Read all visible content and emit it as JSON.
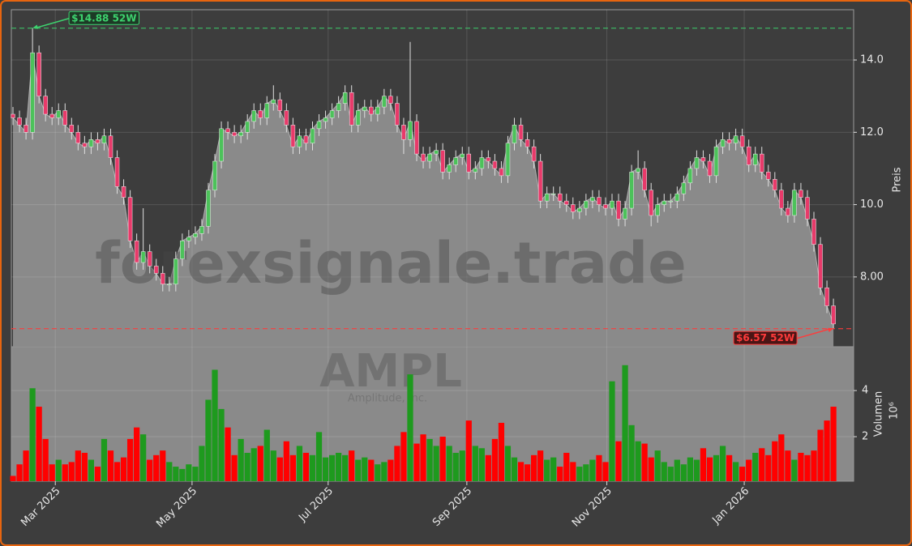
{
  "chart_data": {
    "type": "candlestick",
    "open": [
      12.5,
      12.4,
      12.2,
      12.0,
      14.2,
      13.0,
      12.5,
      12.4,
      12.6,
      12.2,
      12.0,
      11.7,
      11.6,
      11.8,
      11.7,
      11.9,
      11.3,
      10.5,
      10.2,
      9.0,
      8.4,
      8.7,
      8.3,
      8.1,
      7.8,
      7.8,
      8.5,
      9.0,
      9.1,
      9.2,
      9.4,
      10.4,
      11.2,
      12.1,
      12.0,
      11.9,
      12.0,
      12.3,
      12.6,
      12.4,
      12.8,
      12.9,
      12.6,
      12.2,
      11.6,
      11.9,
      11.7,
      12.1,
      12.3,
      12.4,
      12.6,
      12.8,
      13.1,
      12.2,
      12.6,
      12.7,
      12.5,
      12.7,
      13.0,
      12.8,
      12.2,
      11.8,
      12.3,
      11.4,
      11.2,
      11.4,
      11.5,
      10.9,
      11.1,
      11.3,
      11.4,
      10.9,
      11.0,
      11.3,
      11.2,
      11.0,
      10.8,
      11.7,
      12.2,
      11.8,
      11.6,
      11.2,
      10.1,
      10.3,
      10.3,
      10.1,
      10.0,
      9.8,
      9.9,
      10.1,
      10.2,
      10.0,
      9.9,
      10.1,
      9.6,
      9.9,
      10.9,
      11.0,
      10.4,
      9.7,
      10.0,
      10.1,
      10.1,
      10.3,
      10.6,
      11.0,
      11.3,
      11.2,
      10.8,
      11.6,
      11.8,
      11.7,
      11.9,
      11.6,
      11.1,
      11.4,
      10.9,
      10.7,
      10.4,
      9.9,
      9.7,
      10.4,
      10.2,
      9.6,
      8.9,
      7.7,
      7.2
    ],
    "high": [
      12.7,
      12.6,
      12.4,
      14.88,
      14.4,
      13.2,
      12.7,
      12.8,
      12.8,
      12.4,
      12.2,
      11.9,
      12.0,
      12.0,
      12.1,
      12.1,
      11.5,
      10.7,
      10.4,
      9.2,
      9.9,
      8.9,
      8.5,
      8.3,
      8.0,
      8.7,
      9.2,
      9.3,
      9.4,
      9.6,
      10.6,
      11.4,
      12.3,
      12.3,
      12.2,
      12.2,
      12.5,
      12.8,
      12.8,
      13.0,
      13.3,
      13.1,
      12.8,
      12.4,
      12.1,
      12.1,
      12.3,
      12.5,
      12.6,
      12.8,
      13.0,
      13.3,
      13.3,
      12.8,
      12.9,
      12.9,
      12.9,
      13.2,
      13.2,
      13.0,
      12.4,
      14.5,
      12.5,
      11.6,
      11.6,
      11.7,
      11.7,
      11.3,
      11.5,
      11.6,
      11.6,
      11.2,
      11.5,
      11.5,
      11.4,
      11.2,
      11.9,
      12.4,
      12.4,
      12.0,
      11.8,
      11.4,
      10.5,
      10.5,
      10.5,
      10.3,
      10.2,
      10.1,
      10.3,
      10.4,
      10.4,
      10.2,
      10.3,
      10.3,
      10.1,
      11.1,
      11.5,
      11.2,
      10.6,
      10.2,
      10.3,
      10.3,
      10.5,
      10.8,
      11.2,
      11.5,
      11.5,
      11.4,
      11.8,
      12.0,
      12.0,
      12.1,
      12.1,
      11.8,
      11.6,
      11.6,
      11.1,
      10.9,
      10.6,
      10.1,
      10.6,
      10.6,
      10.4,
      9.8,
      9.1,
      7.9,
      7.4
    ],
    "low": [
      12.2,
      12.0,
      11.8,
      11.8,
      12.8,
      12.3,
      12.2,
      12.2,
      12.0,
      11.8,
      11.5,
      11.4,
      11.4,
      11.5,
      11.5,
      11.1,
      10.3,
      10.0,
      8.8,
      8.2,
      8.2,
      8.1,
      7.9,
      7.6,
      7.6,
      7.6,
      8.3,
      8.8,
      8.9,
      9.0,
      9.2,
      10.2,
      11.0,
      11.8,
      11.7,
      11.7,
      11.8,
      12.1,
      12.2,
      12.2,
      12.6,
      12.4,
      12.0,
      11.4,
      11.4,
      11.5,
      11.5,
      11.9,
      12.1,
      12.2,
      12.4,
      12.6,
      12.0,
      12.0,
      12.4,
      12.3,
      12.3,
      12.5,
      12.6,
      12.0,
      11.4,
      11.6,
      11.2,
      11.0,
      11.0,
      11.2,
      10.7,
      10.7,
      10.9,
      11.1,
      10.7,
      10.7,
      10.8,
      11.0,
      10.8,
      10.6,
      10.6,
      11.5,
      11.6,
      11.4,
      11.0,
      9.9,
      9.9,
      10.1,
      9.9,
      9.8,
      9.6,
      9.6,
      9.7,
      9.9,
      9.8,
      9.7,
      9.7,
      9.4,
      9.4,
      9.7,
      10.7,
      10.2,
      9.4,
      9.5,
      9.8,
      9.9,
      9.9,
      10.1,
      10.4,
      10.8,
      11.0,
      10.6,
      10.6,
      11.4,
      11.5,
      11.5,
      11.4,
      10.9,
      10.9,
      10.7,
      10.5,
      10.2,
      9.7,
      9.5,
      9.5,
      10.0,
      9.4,
      8.7,
      7.5,
      7.0,
      6.57
    ],
    "close": [
      12.4,
      12.2,
      12.0,
      14.2,
      13.0,
      12.5,
      12.4,
      12.6,
      12.2,
      12.0,
      11.7,
      11.6,
      11.8,
      11.7,
      11.9,
      11.3,
      10.5,
      10.2,
      9.0,
      8.4,
      8.7,
      8.3,
      8.1,
      7.8,
      7.8,
      8.5,
      9.0,
      9.1,
      9.2,
      9.4,
      10.4,
      11.2,
      12.1,
      12.0,
      11.9,
      12.0,
      12.3,
      12.6,
      12.4,
      12.8,
      12.9,
      12.6,
      12.2,
      11.6,
      11.9,
      11.7,
      12.1,
      12.3,
      12.4,
      12.6,
      12.8,
      13.1,
      12.2,
      12.6,
      12.7,
      12.5,
      12.7,
      13.0,
      12.8,
      12.2,
      11.8,
      12.3,
      11.4,
      11.2,
      11.4,
      11.5,
      10.9,
      11.1,
      11.3,
      11.4,
      10.9,
      11.0,
      11.3,
      11.2,
      11.0,
      10.8,
      11.7,
      12.2,
      11.8,
      11.6,
      11.2,
      10.1,
      10.3,
      10.3,
      10.1,
      10.0,
      9.8,
      9.9,
      10.1,
      10.2,
      10.0,
      9.9,
      10.1,
      9.6,
      9.9,
      10.9,
      11.0,
      10.4,
      9.7,
      10.0,
      10.1,
      10.1,
      10.3,
      10.6,
      11.0,
      11.3,
      11.2,
      10.8,
      11.6,
      11.8,
      11.7,
      11.9,
      11.6,
      11.1,
      11.4,
      10.9,
      10.7,
      10.4,
      9.9,
      9.7,
      10.4,
      10.2,
      9.6,
      8.9,
      7.7,
      7.2,
      6.7
    ],
    "volume": [
      0.3,
      0.8,
      1.4,
      4.1,
      3.3,
      1.9,
      0.8,
      1.0,
      0.8,
      0.9,
      1.4,
      1.3,
      1.0,
      0.7,
      1.9,
      1.4,
      0.9,
      1.1,
      1.9,
      2.4,
      2.1,
      1.0,
      1.2,
      1.4,
      0.9,
      0.7,
      0.6,
      0.8,
      0.7,
      1.6,
      3.6,
      4.9,
      3.2,
      2.4,
      1.2,
      1.9,
      1.3,
      1.5,
      1.6,
      2.3,
      1.4,
      1.1,
      1.8,
      1.2,
      1.6,
      1.3,
      1.2,
      2.2,
      1.1,
      1.2,
      1.3,
      1.2,
      1.4,
      1.0,
      1.1,
      1.0,
      0.8,
      0.9,
      1.0,
      1.6,
      2.2,
      4.7,
      1.7,
      2.1,
      1.9,
      1.6,
      2.0,
      1.6,
      1.3,
      1.4,
      2.7,
      1.6,
      1.5,
      1.2,
      1.9,
      2.6,
      1.6,
      1.1,
      0.9,
      0.8,
      1.2,
      1.4,
      1.0,
      1.1,
      0.7,
      1.3,
      0.9,
      0.7,
      0.8,
      1.0,
      1.2,
      0.9,
      4.4,
      1.8,
      5.1,
      2.5,
      1.8,
      1.7,
      1.1,
      1.4,
      0.9,
      0.7,
      1.0,
      0.8,
      1.1,
      1.0,
      1.5,
      1.1,
      1.2,
      1.6,
      1.2,
      0.9,
      0.7,
      1.0,
      1.3,
      1.5,
      1.2,
      1.8,
      2.1,
      1.4,
      1.0,
      1.3,
      1.2,
      1.4,
      2.3,
      2.7,
      3.3
    ],
    "up_color": "#4cc25a",
    "down_color": "#e83a6a",
    "volume_up_color": "#1e9a1e",
    "volume_down_color": "#ff0000",
    "area_color": "#8a8a8a",
    "xlim": [
      -0.25,
      129.1
    ],
    "xticks": [
      {
        "value": 6.5,
        "label": "Mar 2025"
      },
      {
        "value": 27.5,
        "label": "May 2025"
      },
      {
        "value": 48.4,
        "label": "Jul 2025"
      },
      {
        "value": 69.7,
        "label": "Sep 2025"
      },
      {
        "value": 91.2,
        "label": "Nov 2025"
      },
      {
        "value": 112.3,
        "label": "Jan 2026"
      }
    ],
    "ylim": [
      6.07,
      15.39
    ],
    "yticks": [
      {
        "value": 8,
        "label": "8.00"
      },
      {
        "value": 10,
        "label": "10.0"
      },
      {
        "value": 12,
        "label": "12.0"
      },
      {
        "value": 14,
        "label": "14.0"
      }
    ],
    "ylabel": "Preis",
    "volume_ylim": [
      0.07,
      5.9
    ],
    "volume_yticks": [
      2,
      4
    ],
    "volume_ylabel": "Volumen",
    "volume_offset_label": "10⁶",
    "grid": true,
    "watermark": "forexsignale.trade",
    "symbol": "AMPL",
    "company": "Amplitude, Inc.",
    "annotations": [
      {
        "text": "$14.88 52W",
        "value": 14.88,
        "color": "#3dd26e",
        "background": "#1d3a26"
      },
      {
        "text": "$6.57 52W",
        "value": 6.57,
        "color": "#ff3b3b",
        "background": "#4a1515"
      }
    ]
  }
}
